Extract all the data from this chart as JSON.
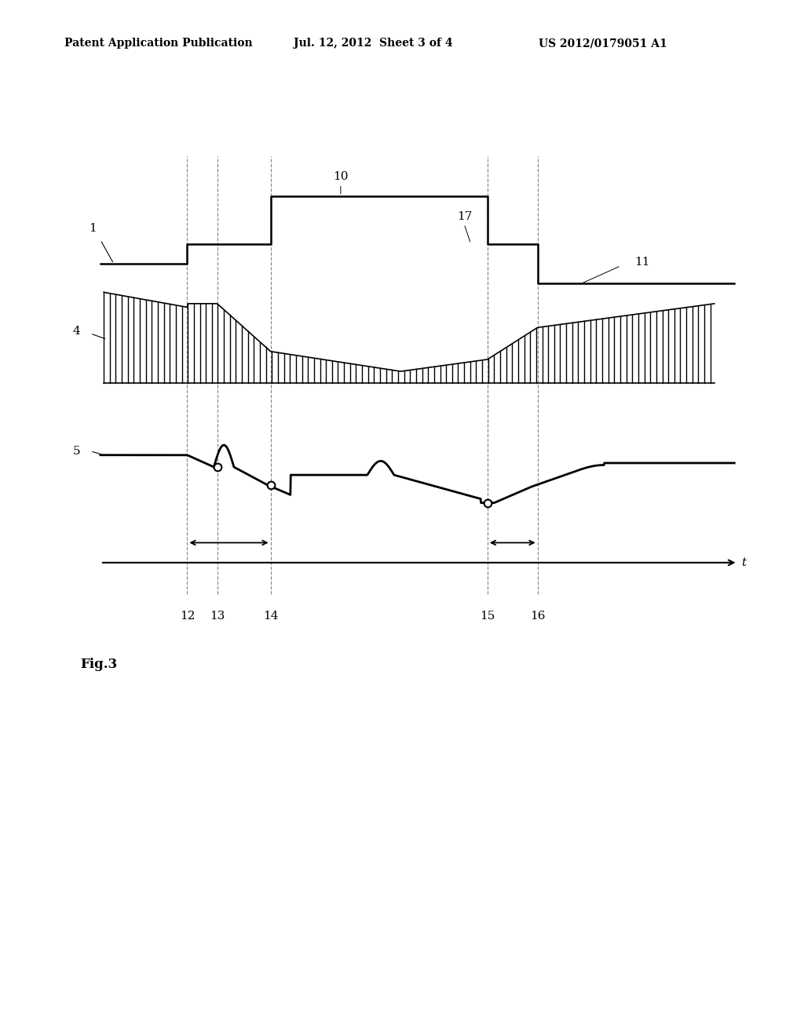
{
  "header_left": "Patent Application Publication",
  "header_mid": "Jul. 12, 2012  Sheet 3 of 4",
  "header_right": "US 2012/0179051 A1",
  "fig_label": "Fig.3",
  "background_color": "#ffffff",
  "text_color": "#000000"
}
